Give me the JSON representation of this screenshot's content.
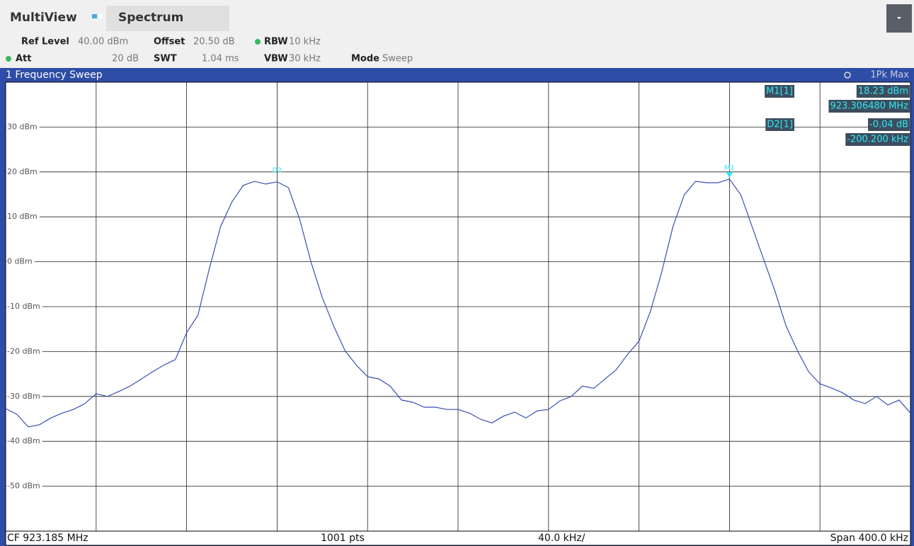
{
  "header": {
    "app": "MultiView",
    "tab": "Spectrum"
  },
  "settings": {
    "ref_level": {
      "label": "Ref Level",
      "value": "40.00 dBm"
    },
    "offset": {
      "label": "Offset",
      "value": "20.50 dB"
    },
    "rbw": {
      "label": "RBW",
      "value": "10 kHz"
    },
    "att": {
      "label": "Att",
      "value": "20 dB"
    },
    "swt": {
      "label": "SWT",
      "value": "1.04 ms"
    },
    "vbw": {
      "label": "VBW",
      "value": "30 kHz"
    },
    "mode": {
      "label": "Mode",
      "value": "Sweep"
    }
  },
  "window": {
    "title": "1 Frequency Sweep",
    "trace_label": "1Pk Max"
  },
  "markers": [
    {
      "name": "M1[1]",
      "value": "18.23 dBm",
      "position": "923.306480 MHz"
    },
    {
      "name": "D2[1]",
      "value": "-0.04 dB",
      "position": "-200.200 kHz"
    }
  ],
  "chart_data": {
    "type": "line",
    "color": "#3b4fb5",
    "grid": true,
    "ylim": [
      -60,
      40
    ],
    "yticks": [
      {
        "value": 30,
        "label": "30 dBm"
      },
      {
        "value": 20,
        "label": "20 dBm"
      },
      {
        "value": 10,
        "label": "10 dBm"
      },
      {
        "value": 0,
        "label": "0 dBm"
      },
      {
        "value": -10,
        "label": "-10 dBm"
      },
      {
        "value": -20,
        "label": "-20 dBm"
      },
      {
        "value": -30,
        "label": "-30 dBm"
      },
      {
        "value": -40,
        "label": "-40 dBm"
      },
      {
        "value": -50,
        "label": "-50 dBm"
      }
    ],
    "values": [
      -32.7,
      -34,
      -36.8,
      -36.3,
      -34.8,
      -33.7,
      -32.9,
      -31.6,
      -29.4,
      -30,
      -28.9,
      -27.7,
      -26.1,
      -24.5,
      -23,
      -21.8,
      -15.8,
      -11.9,
      -1.6,
      7.8,
      13.3,
      17,
      17.9,
      17.3,
      17.8,
      16.5,
      9.4,
      -0.1,
      -8,
      -14.3,
      -19.8,
      -23,
      -25.6,
      -26.1,
      -27.7,
      -30.8,
      -31.3,
      -32.4,
      -32.4,
      -32.9,
      -32.9,
      -33.7,
      -35.1,
      -35.9,
      -34.4,
      -33.5,
      -34.8,
      -33.2,
      -32.9,
      -31,
      -30,
      -27.7,
      -28.2,
      -26.1,
      -24,
      -20.6,
      -17.7,
      -11.1,
      -2.4,
      7.8,
      14.9,
      17.9,
      17.6,
      17.6,
      18.4,
      14.9,
      7.8,
      0.7,
      -6.4,
      -14.3,
      -19.8,
      -24.5,
      -27.2,
      -28.1,
      -29.2,
      -30.8,
      -31.6,
      -30,
      -31.9,
      -30.8,
      -33.7
    ],
    "marker_labels": [
      "M1",
      "D2"
    ]
  },
  "footer": {
    "center": "CF 923.185 MHz",
    "points": "1001 pts",
    "per_div": "40.0 kHz/",
    "span": "Span 400.0 kHz"
  }
}
